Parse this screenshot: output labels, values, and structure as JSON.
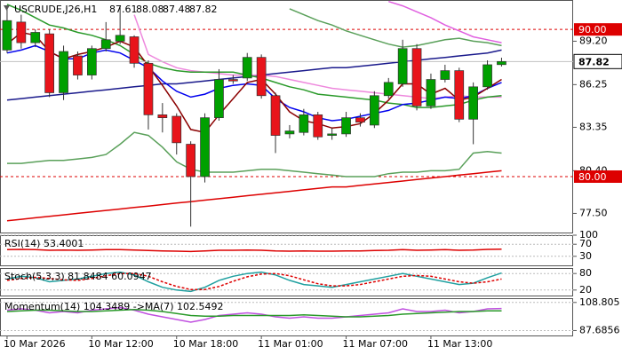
{
  "chart_data": [
    {
      "type": "candlestick",
      "title": "USCRUDE,J26,H1",
      "categories": [
        "10 Mar 2026",
        null,
        null,
        null,
        null,
        null,
        "10 Mar 12:00",
        null,
        null,
        null,
        null,
        null,
        "10 Mar 18:00",
        null,
        null,
        null,
        null,
        null,
        "11 Mar 01:00",
        null,
        null,
        null,
        null,
        null,
        "11 Mar 07:00",
        null,
        null,
        null,
        null,
        null,
        "11 Mar 13:00",
        null,
        null,
        null,
        null,
        null
      ],
      "open": [
        88.6,
        90.5,
        89.1,
        89.7,
        85.7,
        88.2,
        86.9,
        88.7,
        89.2,
        89.5,
        87.7,
        84.2,
        84.1,
        82.2,
        80.0,
        84.0,
        86.6,
        86.7,
        88.1,
        85.5,
        82.9,
        83.0,
        84.2,
        82.8,
        82.9,
        84.0,
        83.5,
        85.5,
        86.3,
        88.7,
        84.8,
        86.6,
        87.2,
        83.9,
        86.1,
        87.61
      ],
      "high": [
        91.5,
        91.0,
        90.0,
        90.0,
        88.9,
        88.5,
        88.9,
        90.5,
        91.5,
        89.6,
        87.9,
        85.0,
        84.3,
        82.4,
        84.3,
        87.3,
        86.9,
        88.4,
        88.3,
        85.7,
        83.5,
        84.6,
        84.4,
        83.3,
        84.4,
        84.3,
        85.8,
        86.7,
        89.3,
        89.0,
        87.0,
        87.6,
        87.4,
        86.4,
        87.9,
        88.08
      ],
      "low": [
        88.4,
        88.7,
        88.8,
        85.4,
        85.2,
        86.6,
        86.6,
        88.5,
        89.0,
        87.4,
        83.2,
        83.0,
        81.5,
        76.6,
        79.6,
        83.8,
        86.3,
        86.5,
        85.3,
        81.6,
        82.6,
        82.8,
        82.5,
        82.5,
        82.7,
        83.4,
        83.3,
        85.3,
        86.1,
        84.5,
        84.6,
        86.4,
        83.7,
        82.2,
        85.9,
        87.48
      ],
      "close": [
        90.6,
        89.1,
        89.8,
        85.7,
        88.5,
        86.9,
        88.7,
        89.3,
        89.6,
        87.7,
        84.2,
        84.0,
        82.3,
        80.0,
        84.0,
        86.6,
        86.5,
        88.1,
        85.5,
        82.8,
        83.1,
        84.2,
        82.7,
        82.9,
        84.0,
        83.7,
        85.5,
        86.4,
        88.7,
        84.8,
        86.6,
        87.2,
        83.9,
        86.1,
        87.6,
        87.82
      ],
      "up_color": "#00a000",
      "down_color": "#e8141b",
      "series": [
        {
          "color": "#1a1a8c",
          "values": [
            85.2,
            85.3,
            85.4,
            85.5,
            85.6,
            85.7,
            85.8,
            85.9,
            86.0,
            86.1,
            86.2,
            86.3,
            86.3,
            86.4,
            86.5,
            86.6,
            86.7,
            86.8,
            86.9,
            87.0,
            87.1,
            87.2,
            87.3,
            87.4,
            87.4,
            87.5,
            87.6,
            87.7,
            87.8,
            87.9,
            88.0,
            88.1,
            88.2,
            88.3,
            88.4,
            88.6
          ]
        },
        {
          "color": "#dd0000",
          "values": [
            77.0,
            77.1,
            77.2,
            77.3,
            77.4,
            77.5,
            77.6,
            77.7,
            77.8,
            77.9,
            78.0,
            78.1,
            78.2,
            78.3,
            78.4,
            78.5,
            78.6,
            78.7,
            78.8,
            78.9,
            79.0,
            79.1,
            79.2,
            79.3,
            79.3,
            79.4,
            79.5,
            79.6,
            79.7,
            79.8,
            79.9,
            80.0,
            80.1,
            80.2,
            80.3,
            80.4
          ]
        },
        {
          "color": "#ee88dd",
          "values": [
            null,
            null,
            null,
            null,
            null,
            null,
            null,
            null,
            null,
            91.0,
            88.3,
            87.8,
            87.4,
            87.2,
            87.1,
            87.0,
            86.9,
            86.9,
            86.9,
            86.8,
            86.6,
            86.4,
            86.2,
            86.0,
            85.9,
            85.8,
            85.7,
            85.6,
            85.5,
            85.4,
            85.3,
            85.4,
            85.5,
            85.4,
            85.4,
            85.4
          ]
        },
        {
          "color": "#e060e0",
          "values": [
            null,
            null,
            null,
            null,
            null,
            null,
            null,
            null,
            null,
            null,
            null,
            null,
            null,
            null,
            null,
            null,
            null,
            null,
            null,
            null,
            null,
            null,
            null,
            null,
            null,
            null,
            null,
            91.9,
            91.6,
            91.2,
            90.8,
            90.3,
            89.9,
            89.5,
            89.3,
            89.1
          ]
        },
        {
          "color": "#2a9a2a",
          "values": [
            91.7,
            91.3,
            90.8,
            90.3,
            90.1,
            89.8,
            89.6,
            89.3,
            88.9,
            88.3,
            87.7,
            87.4,
            87.2,
            87.1,
            87.1,
            87.1,
            87.1,
            86.9,
            86.7,
            86.4,
            86.1,
            85.9,
            85.6,
            85.5,
            85.4,
            85.3,
            85.2,
            85.0,
            84.9,
            84.7,
            84.7,
            84.8,
            84.9,
            85.2,
            85.4,
            85.5
          ]
        },
        {
          "color": "#0000ee",
          "values": [
            88.4,
            88.6,
            88.9,
            88.5,
            88.0,
            88.0,
            88.4,
            88.6,
            88.4,
            87.9,
            87.4,
            86.5,
            85.8,
            85.4,
            85.6,
            86.0,
            86.2,
            86.3,
            86.2,
            85.3,
            84.7,
            84.4,
            84.0,
            83.8,
            83.9,
            84.1,
            84.3,
            84.5,
            84.9,
            85.0,
            85.2,
            85.4,
            85.3,
            85.5,
            86.0,
            86.4
          ]
        },
        {
          "color": "#8b0000",
          "values": [
            89.0,
            89.8,
            89.6,
            88.5,
            88.0,
            88.3,
            88.5,
            88.8,
            89.2,
            88.8,
            87.5,
            86.2,
            84.8,
            83.2,
            83.0,
            84.2,
            85.3,
            86.4,
            86.6,
            85.6,
            84.4,
            83.8,
            83.6,
            83.3,
            83.4,
            83.6,
            84.3,
            85.2,
            86.3,
            86.3,
            85.6,
            86.0,
            85.2,
            85.4,
            86.0,
            86.6
          ]
        },
        {
          "color": "#5aa05a",
          "values": [
            null,
            null,
            null,
            null,
            null,
            null,
            null,
            null,
            null,
            null,
            null,
            null,
            null,
            null,
            null,
            null,
            null,
            null,
            null,
            null,
            91.4,
            91.0,
            90.6,
            90.3,
            89.9,
            89.6,
            89.3,
            89.0,
            88.8,
            88.9,
            89.1,
            89.3,
            89.4,
            89.2,
            89.1,
            88.9
          ]
        },
        {
          "color": "#5aa05a",
          "values": [
            80.9,
            80.9,
            81.0,
            81.1,
            81.1,
            81.2,
            81.3,
            81.5,
            82.2,
            83.0,
            82.8,
            82.0,
            81.0,
            80.5,
            80.3,
            80.3,
            80.3,
            80.4,
            80.5,
            80.5,
            80.4,
            80.3,
            80.2,
            80.1,
            80.0,
            80.0,
            80.0,
            80.2,
            80.3,
            80.3,
            80.4,
            80.4,
            80.5,
            81.6,
            81.7,
            81.6
          ]
        }
      ],
      "ylim": [
        76.2,
        92.0
      ],
      "yticks": [
        {
          "value": 89.2,
          "label": "89.20"
        },
        {
          "value": 86.25,
          "label": "86.25"
        },
        {
          "value": 83.35,
          "label": "83.35"
        },
        {
          "value": 80.4,
          "label": "80.40"
        },
        {
          "value": 77.5,
          "label": "77.50"
        }
      ],
      "levels": [
        {
          "value": 90,
          "label": "90.00"
        },
        {
          "value": 80,
          "label": "80.00"
        }
      ],
      "level_color": "#dd0000"
    },
    {
      "type": "line",
      "title": "RSI(14) 53.4001",
      "series": [
        {
          "color": "#dd0000",
          "values": [
            52,
            53,
            52,
            50,
            51,
            50,
            51,
            52,
            52,
            51,
            49,
            48,
            47,
            46,
            48,
            50,
            50,
            51,
            50,
            48,
            47,
            48,
            47,
            47,
            48,
            48,
            49,
            50,
            52,
            50,
            51,
            52,
            50,
            51,
            53,
            53.4
          ]
        }
      ],
      "ylim": [
        0,
        100
      ],
      "yticks": [
        100,
        70,
        30
      ]
    },
    {
      "type": "line",
      "title": "Stoch(5,3,3) 81.8484 60.0947",
      "series": [
        {
          "color": "#20a0a0",
          "values": [
            60,
            70,
            65,
            50,
            55,
            60,
            70,
            80,
            85,
            75,
            50,
            30,
            20,
            15,
            30,
            55,
            70,
            80,
            85,
            75,
            55,
            40,
            35,
            30,
            40,
            50,
            60,
            70,
            80,
            70,
            60,
            50,
            40,
            45,
            65,
            81.8
          ]
        },
        {
          "color": "#dd0000",
          "dashed": true,
          "values": [
            55,
            62,
            66,
            62,
            57,
            55,
            62,
            72,
            80,
            80,
            70,
            50,
            33,
            22,
            22,
            33,
            52,
            68,
            78,
            80,
            72,
            57,
            43,
            35,
            35,
            40,
            50,
            60,
            70,
            73,
            70,
            60,
            50,
            45,
            50,
            60.1
          ]
        }
      ],
      "ylim": [
        0,
        100
      ],
      "yticks": [
        80,
        20
      ]
    },
    {
      "type": "line",
      "title": "Momentum(14) 104.3489 ->MA(7) 102.5492",
      "series": [
        {
          "color": "#c050e0",
          "values": [
            103,
            104,
            103,
            101,
            102,
            101,
            103,
            104,
            105,
            103,
            100,
            98,
            96,
            94,
            96,
            99,
            100,
            101,
            100,
            98,
            97,
            98,
            97,
            97,
            98,
            99,
            100,
            101,
            104,
            102,
            102,
            103,
            101,
            102,
            104,
            104.3
          ]
        },
        {
          "color": "#2a9a2a",
          "values": [
            102,
            102.5,
            103,
            103,
            102.5,
            102,
            102,
            102.5,
            103,
            103.5,
            103,
            102,
            100.5,
            99,
            98.5,
            98.5,
            99,
            99,
            99,
            99,
            99,
            99.5,
            99,
            98.5,
            98,
            98,
            98.5,
            99,
            100,
            100.5,
            101,
            101.5,
            102,
            102,
            102.5,
            102.5
          ]
        }
      ],
      "ylim": [
        84,
        112
      ],
      "yticks": [
        108.805,
        87.6856
      ]
    }
  ]
}
